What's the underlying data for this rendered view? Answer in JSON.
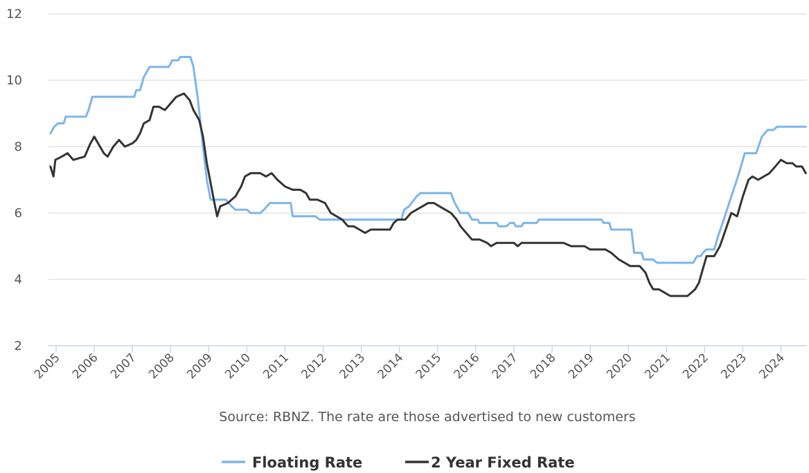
{
  "chart_data": {
    "type": "line",
    "source_note": "Source: RBNZ. The rate are those advertised to new customers",
    "x_ticks": [
      "2005",
      "2006",
      "2007",
      "2008",
      "2009",
      "2010",
      "2011",
      "2012",
      "2013",
      "2014",
      "2015",
      "2016",
      "2017",
      "2018",
      "2019",
      "2020",
      "2021",
      "2022",
      "2023",
      "2024"
    ],
    "y_ticks": [
      2,
      4,
      6,
      8,
      10,
      12
    ],
    "xlim": [
      2004.8,
      2024.68
    ],
    "ylim": [
      2,
      12
    ],
    "grid": true,
    "legend_position": "bottom-center",
    "series": [
      {
        "name": "Floating Rate",
        "color": "#7cb5ec",
        "points": [
          [
            2004.85,
            8.4
          ],
          [
            2004.95,
            8.6
          ],
          [
            2005.05,
            8.7
          ],
          [
            2005.2,
            8.7
          ],
          [
            2005.25,
            8.9
          ],
          [
            2005.78,
            8.9
          ],
          [
            2005.85,
            9.1
          ],
          [
            2005.95,
            9.5
          ],
          [
            2006.1,
            9.5
          ],
          [
            2007.05,
            9.5
          ],
          [
            2007.1,
            9.7
          ],
          [
            2007.2,
            9.7
          ],
          [
            2007.3,
            10.1
          ],
          [
            2007.45,
            10.4
          ],
          [
            2007.95,
            10.4
          ],
          [
            2008.05,
            10.6
          ],
          [
            2008.2,
            10.6
          ],
          [
            2008.25,
            10.7
          ],
          [
            2008.52,
            10.7
          ],
          [
            2008.6,
            10.4
          ],
          [
            2008.72,
            9.4
          ],
          [
            2008.85,
            8.0
          ],
          [
            2008.95,
            7.0
          ],
          [
            2009.05,
            6.4
          ],
          [
            2009.1,
            6.4
          ],
          [
            2009.45,
            6.4
          ],
          [
            2009.6,
            6.2
          ],
          [
            2009.7,
            6.1
          ],
          [
            2010.0,
            6.1
          ],
          [
            2010.1,
            6.0
          ],
          [
            2010.35,
            6.0
          ],
          [
            2010.45,
            6.1
          ],
          [
            2010.6,
            6.3
          ],
          [
            2011.15,
            6.3
          ],
          [
            2011.2,
            5.9
          ],
          [
            2011.8,
            5.9
          ],
          [
            2011.9,
            5.8
          ],
          [
            2013.9,
            5.8
          ],
          [
            2014.05,
            5.8
          ],
          [
            2014.12,
            6.1
          ],
          [
            2014.25,
            6.2
          ],
          [
            2014.45,
            6.5
          ],
          [
            2014.55,
            6.6
          ],
          [
            2015.35,
            6.6
          ],
          [
            2015.45,
            6.3
          ],
          [
            2015.6,
            6.0
          ],
          [
            2015.8,
            6.0
          ],
          [
            2015.9,
            5.8
          ],
          [
            2016.05,
            5.8
          ],
          [
            2016.1,
            5.7
          ],
          [
            2016.55,
            5.7
          ],
          [
            2016.6,
            5.6
          ],
          [
            2016.8,
            5.6
          ],
          [
            2016.9,
            5.7
          ],
          [
            2017.0,
            5.7
          ],
          [
            2017.05,
            5.6
          ],
          [
            2017.2,
            5.6
          ],
          [
            2017.25,
            5.7
          ],
          [
            2017.6,
            5.7
          ],
          [
            2017.65,
            5.8
          ],
          [
            2019.3,
            5.8
          ],
          [
            2019.35,
            5.7
          ],
          [
            2019.5,
            5.7
          ],
          [
            2019.55,
            5.5
          ],
          [
            2020.08,
            5.5
          ],
          [
            2020.15,
            4.8
          ],
          [
            2020.35,
            4.8
          ],
          [
            2020.4,
            4.6
          ],
          [
            2020.65,
            4.6
          ],
          [
            2020.75,
            4.5
          ],
          [
            2021.7,
            4.5
          ],
          [
            2021.75,
            4.6
          ],
          [
            2021.8,
            4.7
          ],
          [
            2021.9,
            4.7
          ],
          [
            2021.95,
            4.8
          ],
          [
            2022.05,
            4.9
          ],
          [
            2022.25,
            4.9
          ],
          [
            2022.35,
            5.3
          ],
          [
            2022.5,
            5.8
          ],
          [
            2022.7,
            6.5
          ],
          [
            2022.9,
            7.2
          ],
          [
            2023.05,
            7.8
          ],
          [
            2023.35,
            7.8
          ],
          [
            2023.5,
            8.3
          ],
          [
            2023.65,
            8.5
          ],
          [
            2023.8,
            8.5
          ],
          [
            2023.9,
            8.6
          ],
          [
            2024.65,
            8.6
          ]
        ]
      },
      {
        "name": "2 Year Fixed Rate",
        "color": "#333333",
        "points": [
          [
            2004.85,
            7.4
          ],
          [
            2004.93,
            7.1
          ],
          [
            2004.98,
            7.6
          ],
          [
            2005.15,
            7.7
          ],
          [
            2005.3,
            7.8
          ],
          [
            2005.45,
            7.6
          ],
          [
            2005.75,
            7.7
          ],
          [
            2005.9,
            8.1
          ],
          [
            2006.0,
            8.3
          ],
          [
            2006.1,
            8.1
          ],
          [
            2006.25,
            7.8
          ],
          [
            2006.35,
            7.7
          ],
          [
            2006.5,
            8.0
          ],
          [
            2006.65,
            8.2
          ],
          [
            2006.8,
            8.0
          ],
          [
            2007.0,
            8.1
          ],
          [
            2007.1,
            8.2
          ],
          [
            2007.2,
            8.4
          ],
          [
            2007.3,
            8.7
          ],
          [
            2007.45,
            8.8
          ],
          [
            2007.55,
            9.2
          ],
          [
            2007.7,
            9.2
          ],
          [
            2007.85,
            9.1
          ],
          [
            2008.0,
            9.3
          ],
          [
            2008.15,
            9.5
          ],
          [
            2008.35,
            9.6
          ],
          [
            2008.5,
            9.4
          ],
          [
            2008.6,
            9.1
          ],
          [
            2008.75,
            8.8
          ],
          [
            2008.85,
            8.3
          ],
          [
            2008.95,
            7.5
          ],
          [
            2009.05,
            6.9
          ],
          [
            2009.15,
            6.3
          ],
          [
            2009.22,
            5.9
          ],
          [
            2009.3,
            6.2
          ],
          [
            2009.5,
            6.3
          ],
          [
            2009.7,
            6.5
          ],
          [
            2009.85,
            6.8
          ],
          [
            2009.95,
            7.1
          ],
          [
            2010.1,
            7.2
          ],
          [
            2010.35,
            7.2
          ],
          [
            2010.5,
            7.1
          ],
          [
            2010.65,
            7.2
          ],
          [
            2010.8,
            7.0
          ],
          [
            2011.0,
            6.8
          ],
          [
            2011.2,
            6.7
          ],
          [
            2011.4,
            6.7
          ],
          [
            2011.55,
            6.6
          ],
          [
            2011.65,
            6.4
          ],
          [
            2011.85,
            6.4
          ],
          [
            2012.05,
            6.3
          ],
          [
            2012.2,
            6.0
          ],
          [
            2012.35,
            5.9
          ],
          [
            2012.5,
            5.8
          ],
          [
            2012.65,
            5.6
          ],
          [
            2012.8,
            5.6
          ],
          [
            2012.95,
            5.5
          ],
          [
            2013.1,
            5.4
          ],
          [
            2013.25,
            5.5
          ],
          [
            2013.55,
            5.5
          ],
          [
            2013.75,
            5.5
          ],
          [
            2013.85,
            5.7
          ],
          [
            2013.95,
            5.8
          ],
          [
            2014.15,
            5.8
          ],
          [
            2014.3,
            6.0
          ],
          [
            2014.45,
            6.1
          ],
          [
            2014.6,
            6.2
          ],
          [
            2014.75,
            6.3
          ],
          [
            2014.9,
            6.3
          ],
          [
            2015.05,
            6.2
          ],
          [
            2015.2,
            6.1
          ],
          [
            2015.35,
            6.0
          ],
          [
            2015.5,
            5.8
          ],
          [
            2015.6,
            5.6
          ],
          [
            2015.75,
            5.4
          ],
          [
            2015.9,
            5.2
          ],
          [
            2016.1,
            5.2
          ],
          [
            2016.3,
            5.1
          ],
          [
            2016.4,
            5.0
          ],
          [
            2016.55,
            5.1
          ],
          [
            2017.0,
            5.1
          ],
          [
            2017.1,
            5.0
          ],
          [
            2017.2,
            5.1
          ],
          [
            2018.3,
            5.1
          ],
          [
            2018.5,
            5.0
          ],
          [
            2018.85,
            5.0
          ],
          [
            2019.0,
            4.9
          ],
          [
            2019.4,
            4.9
          ],
          [
            2019.55,
            4.8
          ],
          [
            2019.75,
            4.6
          ],
          [
            2019.9,
            4.5
          ],
          [
            2020.05,
            4.4
          ],
          [
            2020.3,
            4.4
          ],
          [
            2020.45,
            4.2
          ],
          [
            2020.55,
            3.9
          ],
          [
            2020.65,
            3.7
          ],
          [
            2020.8,
            3.7
          ],
          [
            2020.95,
            3.6
          ],
          [
            2021.1,
            3.5
          ],
          [
            2021.4,
            3.5
          ],
          [
            2021.55,
            3.5
          ],
          [
            2021.65,
            3.6
          ],
          [
            2021.75,
            3.7
          ],
          [
            2021.85,
            3.9
          ],
          [
            2021.95,
            4.3
          ],
          [
            2022.05,
            4.7
          ],
          [
            2022.25,
            4.7
          ],
          [
            2022.4,
            5.0
          ],
          [
            2022.55,
            5.5
          ],
          [
            2022.7,
            6.0
          ],
          [
            2022.85,
            5.9
          ],
          [
            2023.0,
            6.5
          ],
          [
            2023.15,
            7.0
          ],
          [
            2023.25,
            7.1
          ],
          [
            2023.4,
            7.0
          ],
          [
            2023.55,
            7.1
          ],
          [
            2023.7,
            7.2
          ],
          [
            2023.85,
            7.4
          ],
          [
            2024.0,
            7.6
          ],
          [
            2024.15,
            7.5
          ],
          [
            2024.3,
            7.5
          ],
          [
            2024.4,
            7.4
          ],
          [
            2024.55,
            7.4
          ],
          [
            2024.65,
            7.2
          ]
        ]
      }
    ]
  }
}
